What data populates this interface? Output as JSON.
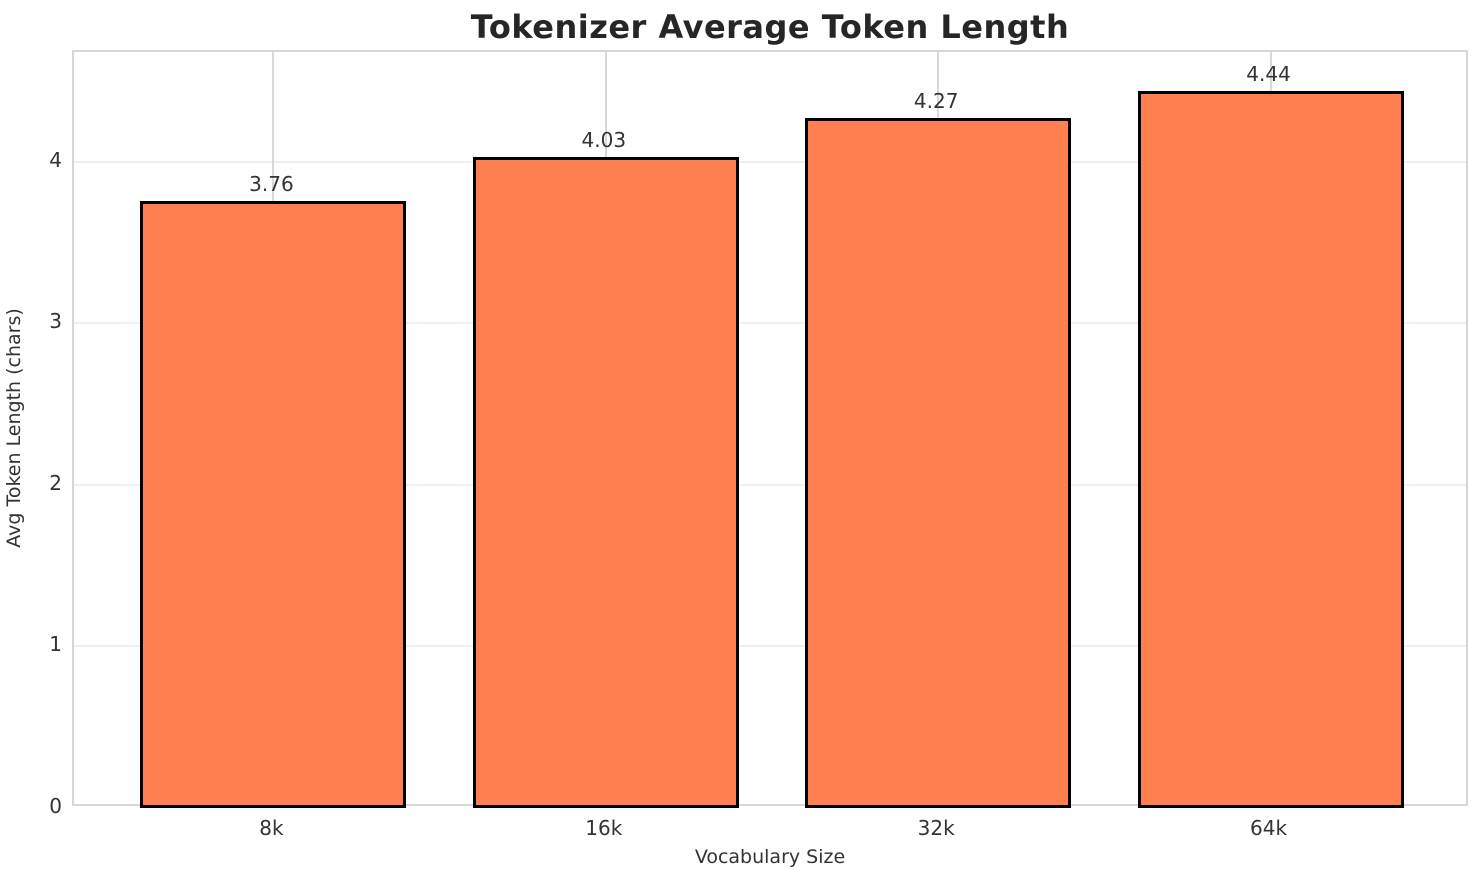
{
  "chart_data": {
    "type": "bar",
    "title": "Tokenizer Average Token Length",
    "xlabel": "Vocabulary Size",
    "ylabel": "Avg Token Length (chars)",
    "categories": [
      "8k",
      "16k",
      "32k",
      "64k"
    ],
    "values": [
      3.76,
      4.03,
      4.27,
      4.44
    ],
    "value_labels": [
      "3.76",
      "4.03",
      "4.27",
      "4.44"
    ],
    "yticks": [
      0,
      1,
      2,
      3,
      4
    ],
    "ytick_labels": [
      "0",
      "1",
      "2",
      "3",
      "4"
    ],
    "ylim": [
      0,
      4.68
    ],
    "grid": true,
    "legend_position": "none",
    "colors": {
      "bar_fill": "#FF7F50",
      "bar_edge": "#000000",
      "spine": "#d6d6d6",
      "grid_vertical": "#d9d9d9",
      "grid_horizontal": "#f0f0f0",
      "title_text": "#262626",
      "label_text": "#333333",
      "background": "#ffffff"
    }
  }
}
